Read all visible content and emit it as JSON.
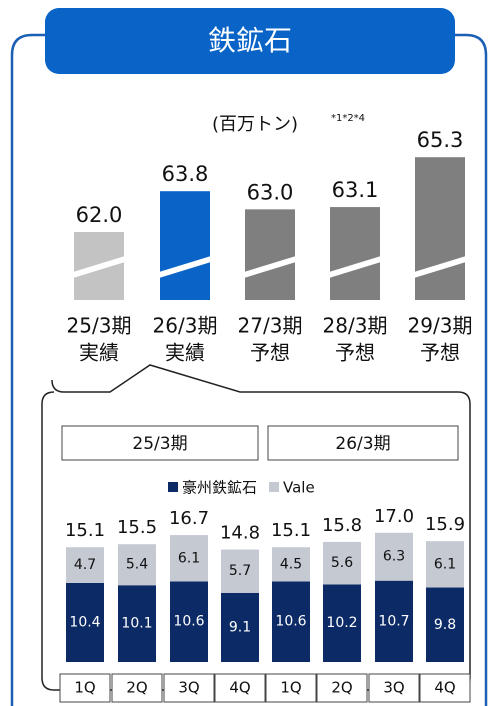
{
  "header": {
    "title": "鉄鉱石"
  },
  "chart_data": [
    {
      "type": "bar",
      "unit": "(百万トン)",
      "note": "*1*2*4",
      "categories": [
        [
          "25/3期",
          "実績"
        ],
        [
          "26/3期",
          "実績"
        ],
        [
          "27/3期",
          "予想"
        ],
        [
          "28/3期",
          "予想"
        ],
        [
          "29/3期",
          "予想"
        ]
      ],
      "values": [
        62.0,
        63.8,
        63.0,
        63.1,
        65.3
      ],
      "value_labels": [
        "62.0",
        "63.8",
        "63.0",
        "63.1",
        "65.3"
      ],
      "colors": [
        "#c3c3c3",
        "#0a64c8",
        "#7f7f7f",
        "#7f7f7f",
        "#7f7f7f"
      ],
      "ylim": [
        59,
        66.5
      ]
    },
    {
      "type": "stacked_bar",
      "groups": [
        "25/3期",
        "26/3期"
      ],
      "categories": [
        "1Q",
        "2Q",
        "3Q",
        "4Q",
        "1Q",
        "2Q",
        "3Q",
        "4Q"
      ],
      "series": [
        {
          "name": "豪州鉄鉱石",
          "color": "#0c2a66",
          "values": [
            10.4,
            10.1,
            10.6,
            9.1,
            10.6,
            10.2,
            10.7,
            9.8
          ]
        },
        {
          "name": "Vale",
          "color": "#c5c9d2",
          "values": [
            4.7,
            5.4,
            6.1,
            5.7,
            4.5,
            5.6,
            6.3,
            6.1
          ]
        }
      ],
      "totals": [
        15.1,
        15.5,
        16.7,
        14.8,
        15.1,
        15.8,
        17.0,
        15.9
      ],
      "total_labels": [
        "15.1",
        "15.5",
        "16.7",
        "14.8",
        "15.1",
        "15.8",
        "17.0",
        "15.9"
      ],
      "ylim": [
        0,
        20
      ]
    }
  ]
}
